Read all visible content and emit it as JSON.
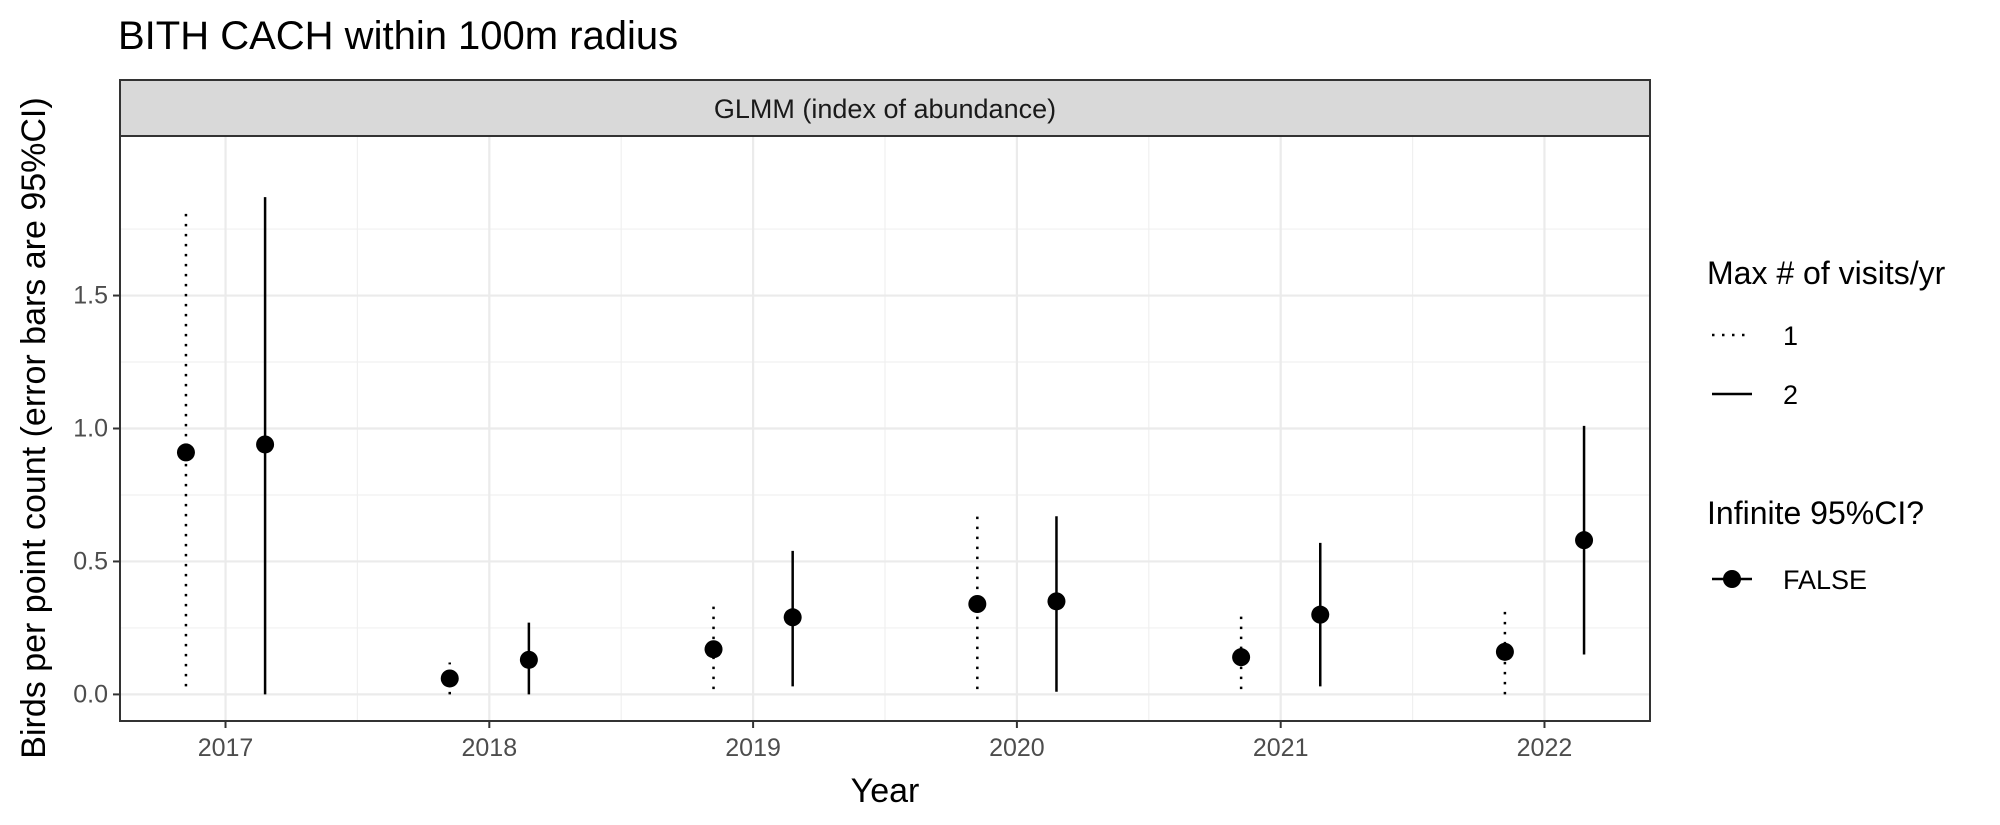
{
  "chart_data": {
    "type": "scatter",
    "title": "BITH CACH within 100m radius",
    "facet_label": "GLMM (index of abundance)",
    "xlabel": "Year",
    "ylabel": "Birds per point count (error bars are 95%CI)",
    "categories": [
      "2017",
      "2018",
      "2019",
      "2020",
      "2021",
      "2022"
    ],
    "ylim": [
      -0.1,
      2.1
    ],
    "yticks": [
      0.0,
      0.5,
      1.0,
      1.5
    ],
    "ytick_labels": [
      "0.0",
      "0.5",
      "1.0",
      "1.5"
    ],
    "grid": true,
    "legend_position": "right",
    "legend": {
      "linetype_title": "Max # of visits/yr",
      "linetype_entries": [
        "1",
        "2"
      ],
      "shape_title": "Infinite 95%CI?",
      "shape_entries": [
        "FALSE"
      ]
    },
    "series": [
      {
        "name": "1",
        "linetype": "dotted",
        "values": [
          0.91,
          0.06,
          0.17,
          0.34,
          0.14,
          0.16
        ],
        "lower": [
          0.03,
          0.0,
          0.02,
          0.02,
          0.02,
          0.0
        ],
        "upper": [
          1.83,
          0.12,
          0.34,
          0.68,
          0.3,
          0.32
        ]
      },
      {
        "name": "2",
        "linetype": "solid",
        "values": [
          0.94,
          0.13,
          0.29,
          0.35,
          0.3,
          0.58
        ],
        "lower": [
          0.0,
          0.0,
          0.03,
          0.01,
          0.03,
          0.15
        ],
        "upper": [
          1.87,
          0.27,
          0.54,
          0.67,
          0.57,
          1.01
        ]
      }
    ]
  }
}
